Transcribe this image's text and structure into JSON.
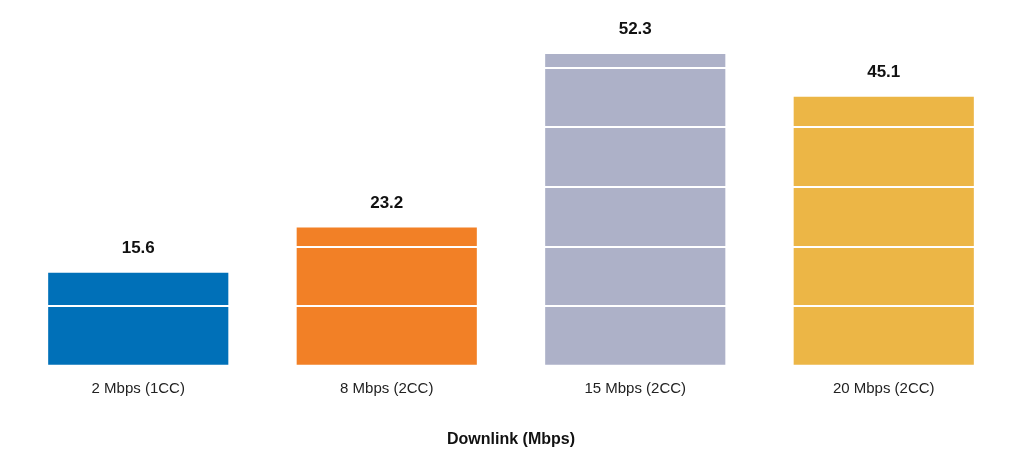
{
  "chart_data": {
    "type": "bar",
    "xlabel": "Downlink (Mbps)",
    "categories": [
      "2 Mbps (1CC)",
      "8 Mbps (2CC)",
      "15 Mbps (2CC)",
      "20 Mbps (2CC)"
    ],
    "values": [
      15.6,
      23.2,
      52.3,
      45.1
    ],
    "colors": [
      "#0070b8",
      "#f28026",
      "#adb1c8",
      "#ecb646"
    ],
    "yticks": [
      {
        "value": 0,
        "label": null
      },
      {
        "value": 10,
        "label": null
      },
      {
        "value": 20,
        "label": null
      },
      {
        "value": 30,
        "label": null
      },
      {
        "value": 40,
        "label": null
      },
      {
        "value": 50,
        "label": null
      }
    ],
    "grid": "y",
    "tick_labels": "x",
    "data_labels": true,
    "legend": false
  }
}
